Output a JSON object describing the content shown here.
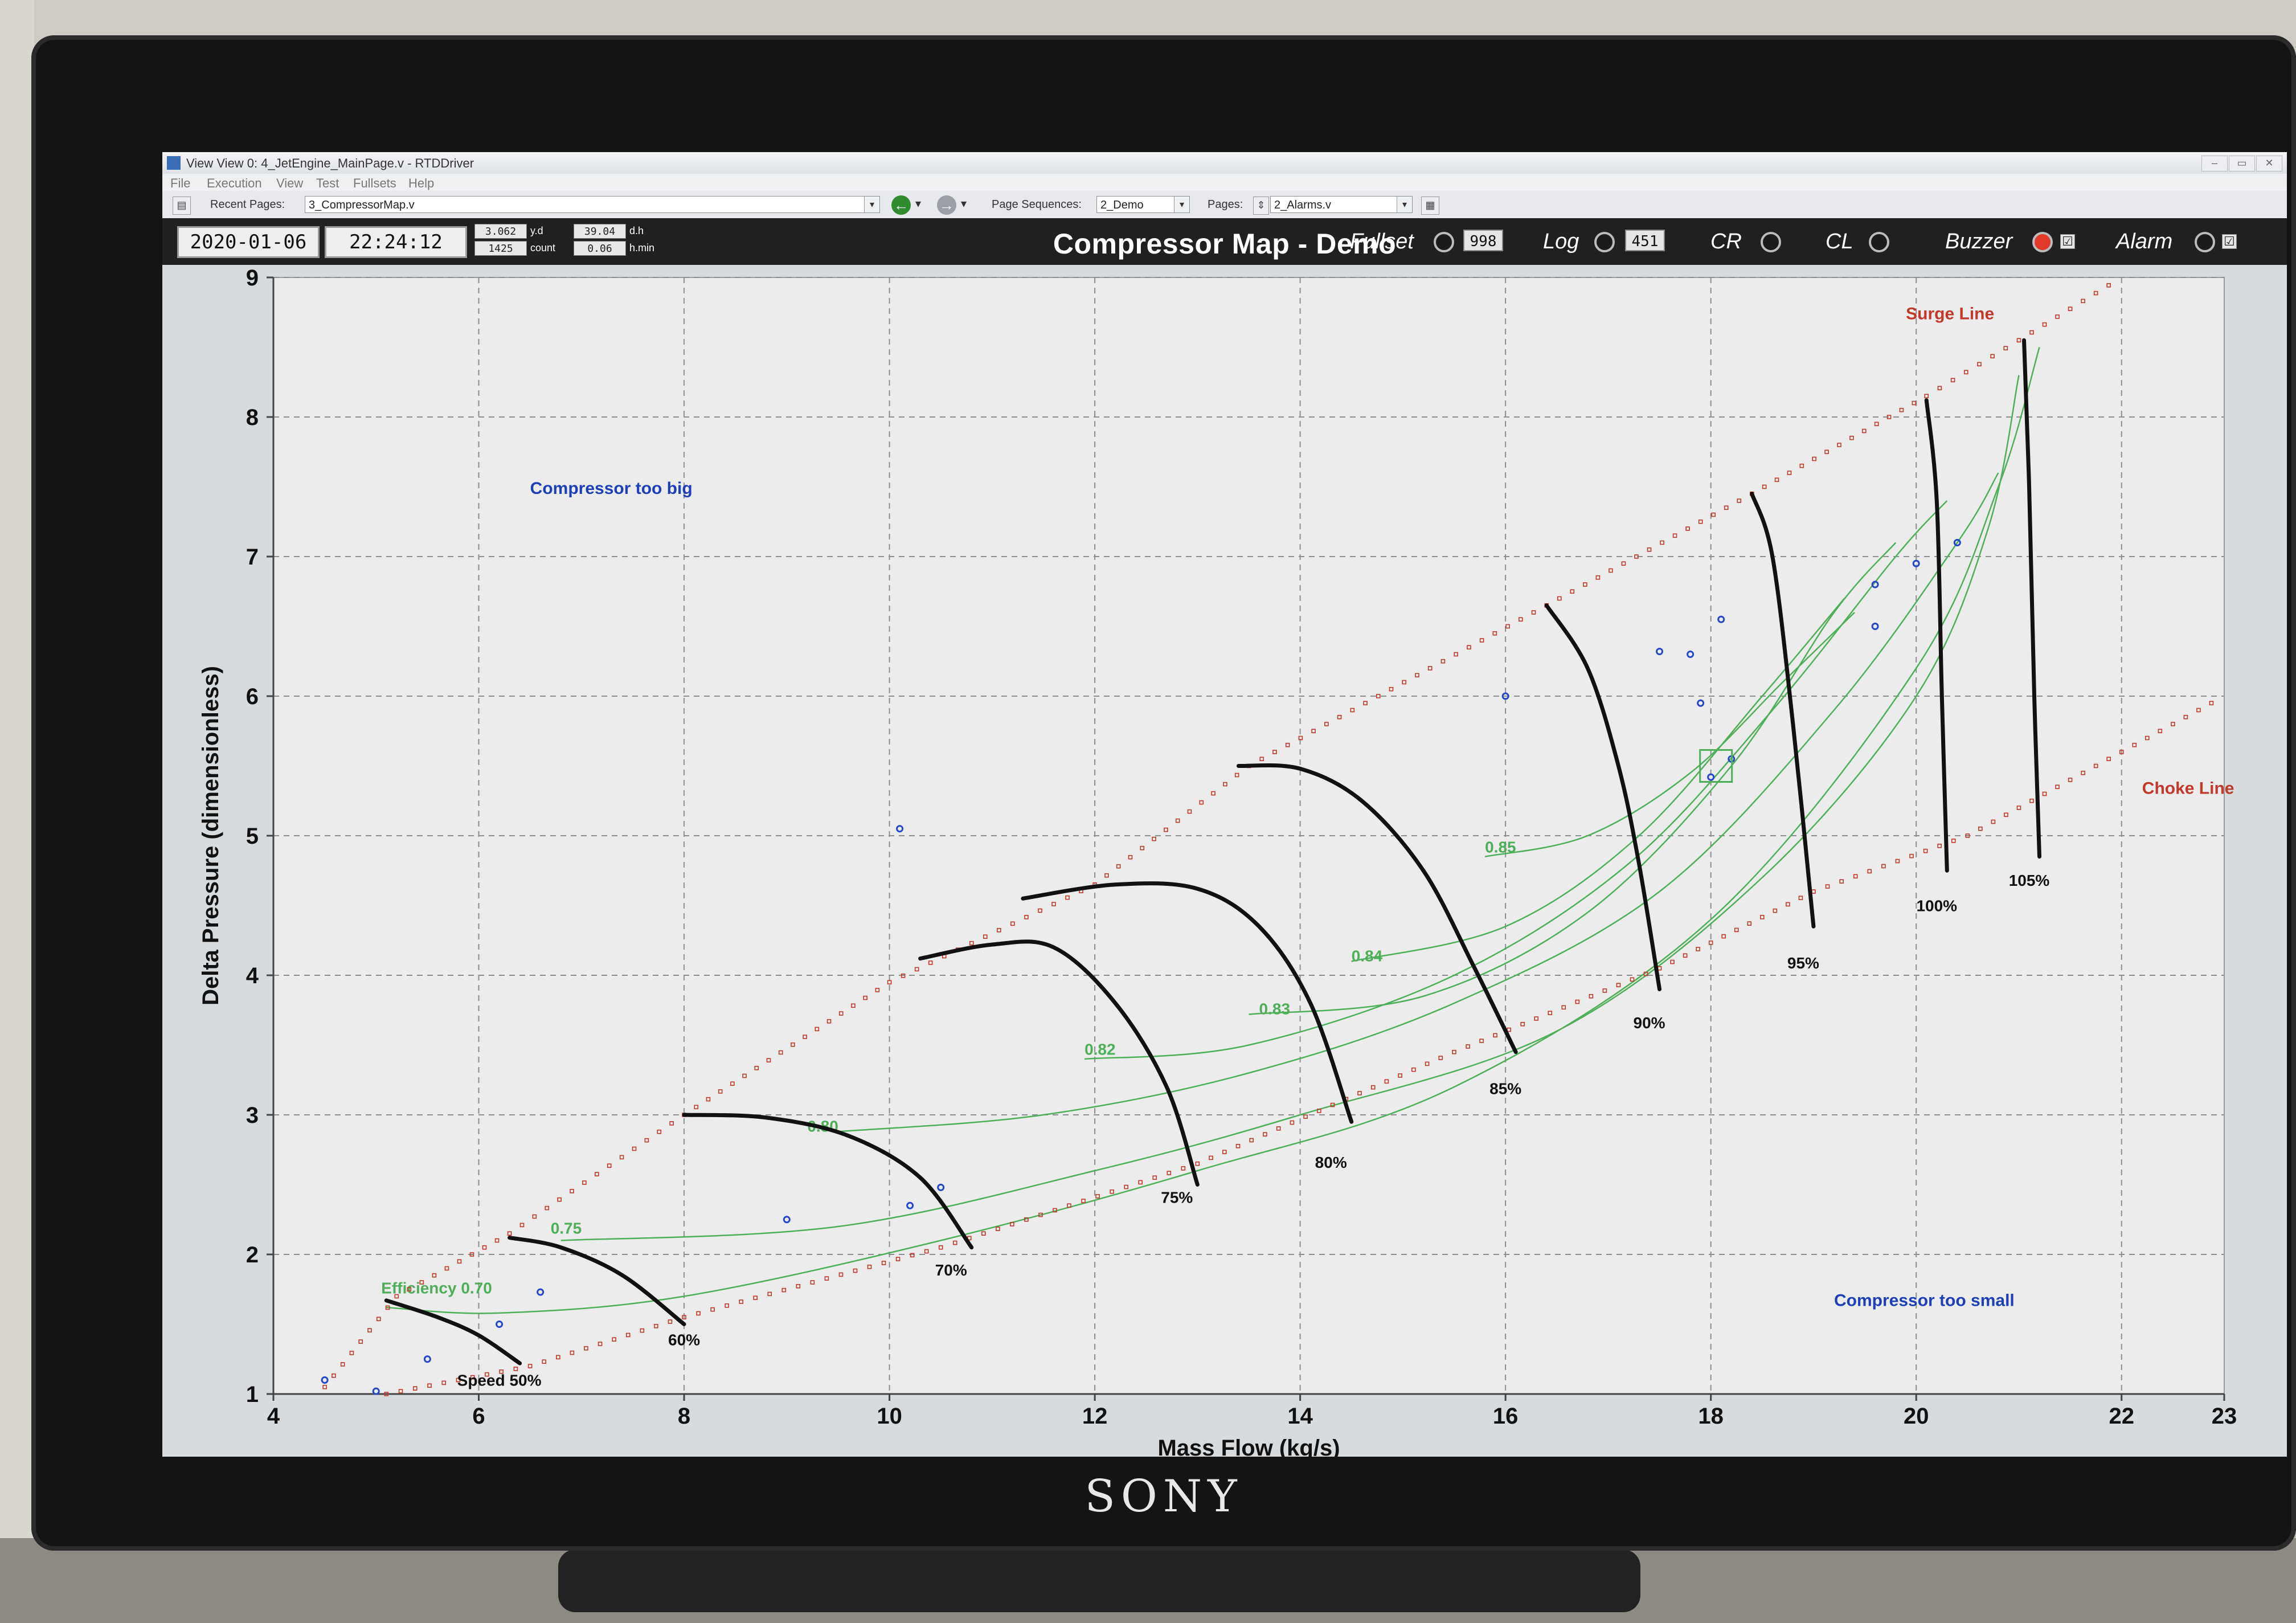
{
  "window": {
    "title": "View View 0: 4_JetEngine_MainPage.v - RTDDriver",
    "menu": [
      "File",
      "Execution",
      "View",
      "Test",
      "Fullsets",
      "Help"
    ]
  },
  "toolbar": {
    "recent_pages_label": "Recent Pages:",
    "recent_pages_value": "3_CompressorMap.v",
    "page_sequences_label": "Page Sequences:",
    "page_sequences_value": "2_Demo",
    "pages_label": "Pages:",
    "pages_value": "2_Alarms.v"
  },
  "status": {
    "date": "2020-01-06",
    "time": "22:24:12",
    "yd_value": "3.062",
    "yd_label": "y.d",
    "count_value": "1425",
    "count_label": "count",
    "dh_value": "39.04",
    "dh_label": "d.h",
    "hmin_value": "0.06",
    "hmin_label": "h.min",
    "page_title": "Compressor Map - Demo",
    "indicators": [
      {
        "label": "Fullset",
        "count": "998",
        "lamp": "#1b1b1b"
      },
      {
        "label": "Log",
        "count": "451",
        "lamp": "#1b1b1b"
      },
      {
        "label": "CR",
        "lamp": "#1b1b1b"
      },
      {
        "label": "CL",
        "lamp": "#1b1b1b"
      },
      {
        "label": "Buzzer",
        "lamp": "#e23a2a",
        "check": "☑"
      },
      {
        "label": "Alarm",
        "lamp": "#1b1b1b",
        "check": "☑"
      }
    ]
  },
  "colors": {
    "speed_line": "#111111",
    "efficiency": "#4fae5a",
    "surge_choke": "#c0392b",
    "operating_points": "#2747c9",
    "region_label": "#1f3fb5",
    "grid": "#8c8f92",
    "plot_bg": "#ececec"
  },
  "chart_data": {
    "type": "line",
    "title": "",
    "xlabel": "Mass Flow (kg/s)",
    "ylabel": "Delta Pressure (dimensionless)",
    "xlim": [
      4,
      23
    ],
    "ylim": [
      1,
      9
    ],
    "x_ticks": [
      "4",
      "6",
      "8",
      "10",
      "12",
      "14",
      "16",
      "18",
      "20",
      "22",
      "23"
    ],
    "y_ticks": [
      "1",
      "2",
      "3",
      "4",
      "5",
      "6",
      "7",
      "8",
      "9"
    ],
    "grid": true,
    "speed_lines": [
      {
        "label": "Speed 50%",
        "points": [
          [
            5.1,
            1.67
          ],
          [
            5.6,
            1.55
          ],
          [
            6.0,
            1.42
          ],
          [
            6.4,
            1.22
          ]
        ],
        "label_at": [
          6.2,
          1.06
        ]
      },
      {
        "label": "60%",
        "points": [
          [
            6.3,
            2.12
          ],
          [
            6.8,
            2.05
          ],
          [
            7.4,
            1.85
          ],
          [
            8.0,
            1.5
          ]
        ],
        "label_at": [
          8.0,
          1.35
        ]
      },
      {
        "label": "70%",
        "points": [
          [
            8.0,
            3.0
          ],
          [
            8.8,
            2.98
          ],
          [
            9.6,
            2.85
          ],
          [
            10.3,
            2.55
          ],
          [
            10.8,
            2.05
          ]
        ],
        "label_at": [
          10.6,
          1.85
        ]
      },
      {
        "label": "75%",
        "points": [
          [
            10.3,
            4.12
          ],
          [
            11.0,
            4.22
          ],
          [
            11.6,
            4.2
          ],
          [
            12.2,
            3.8
          ],
          [
            12.7,
            3.2
          ],
          [
            13.0,
            2.5
          ]
        ],
        "label_at": [
          12.8,
          2.37
        ]
      },
      {
        "label": "80%",
        "points": [
          [
            11.3,
            4.55
          ],
          [
            12.2,
            4.65
          ],
          [
            13.0,
            4.62
          ],
          [
            13.6,
            4.35
          ],
          [
            14.1,
            3.8
          ],
          [
            14.5,
            2.95
          ]
        ],
        "label_at": [
          14.3,
          2.62
        ]
      },
      {
        "label": "85%",
        "points": [
          [
            13.4,
            5.5
          ],
          [
            14.0,
            5.48
          ],
          [
            14.6,
            5.25
          ],
          [
            15.2,
            4.75
          ],
          [
            15.7,
            4.05
          ],
          [
            16.1,
            3.45
          ]
        ],
        "label_at": [
          16.0,
          3.15
        ]
      },
      {
        "label": "90%",
        "points": [
          [
            16.4,
            6.65
          ],
          [
            16.8,
            6.2
          ],
          [
            17.1,
            5.5
          ],
          [
            17.3,
            4.8
          ],
          [
            17.5,
            3.9
          ]
        ],
        "label_at": [
          17.4,
          3.62
        ]
      },
      {
        "label": "95%",
        "points": [
          [
            18.4,
            7.45
          ],
          [
            18.6,
            7.0
          ],
          [
            18.8,
            5.8
          ],
          [
            19.0,
            4.35
          ]
        ],
        "label_at": [
          18.9,
          4.05
        ]
      },
      {
        "label": "100%",
        "points": [
          [
            20.1,
            8.12
          ],
          [
            20.2,
            7.4
          ],
          [
            20.25,
            6.0
          ],
          [
            20.3,
            4.75
          ]
        ],
        "label_at": [
          20.2,
          4.46
        ]
      },
      {
        "label": "105%",
        "points": [
          [
            21.05,
            8.55
          ],
          [
            21.1,
            7.5
          ],
          [
            21.15,
            6.0
          ],
          [
            21.2,
            4.85
          ]
        ],
        "label_at": [
          21.1,
          4.64
        ]
      }
    ],
    "surge_line": {
      "label": "Surge Line",
      "label_at": [
        19.9,
        8.7
      ],
      "points": [
        [
          4.5,
          1.05
        ],
        [
          5.2,
          1.7
        ],
        [
          6.3,
          2.15
        ],
        [
          8.0,
          3.0
        ],
        [
          10.0,
          3.95
        ],
        [
          12.0,
          4.65
        ],
        [
          13.5,
          5.5
        ],
        [
          16.4,
          6.65
        ],
        [
          18.4,
          7.45
        ],
        [
          20.1,
          8.15
        ],
        [
          21.0,
          8.55
        ],
        [
          22.0,
          9.0
        ]
      ]
    },
    "choke_line": {
      "label": "Choke Line",
      "label_at": [
        22.2,
        5.3
      ],
      "points": [
        [
          5.1,
          1.0
        ],
        [
          6.5,
          1.2
        ],
        [
          8.0,
          1.55
        ],
        [
          10.5,
          2.05
        ],
        [
          13.0,
          2.65
        ],
        [
          15.5,
          3.45
        ],
        [
          17.5,
          4.05
        ],
        [
          19.0,
          4.6
        ],
        [
          20.5,
          5.0
        ],
        [
          21.5,
          5.4
        ],
        [
          23.0,
          6.0
        ]
      ]
    },
    "efficiency_contours": [
      {
        "label": "Efficiency 0.70",
        "label_at": [
          5.05,
          1.72
        ],
        "points": [
          [
            5.1,
            1.62
          ],
          [
            6.2,
            1.58
          ],
          [
            8.0,
            1.7
          ],
          [
            10.5,
            2.1
          ],
          [
            13.0,
            2.6
          ],
          [
            15.5,
            3.2
          ],
          [
            18.0,
            4.4
          ],
          [
            20.0,
            6.2
          ],
          [
            20.8,
            7.5
          ],
          [
            21.2,
            8.5
          ]
        ]
      },
      {
        "label": "0.75",
        "label_at": [
          6.7,
          2.15
        ],
        "points": [
          [
            6.8,
            2.1
          ],
          [
            9.5,
            2.2
          ],
          [
            12.0,
            2.6
          ],
          [
            14.0,
            3.0
          ],
          [
            16.5,
            3.6
          ],
          [
            18.5,
            4.7
          ],
          [
            20.0,
            6.0
          ],
          [
            20.7,
            7.2
          ],
          [
            21.0,
            8.3
          ]
        ]
      },
      {
        "label": "0.80",
        "label_at": [
          9.2,
          2.88
        ],
        "points": [
          [
            9.5,
            2.88
          ],
          [
            11.5,
            3.0
          ],
          [
            13.5,
            3.3
          ],
          [
            15.5,
            3.8
          ],
          [
            17.5,
            4.6
          ],
          [
            19.2,
            5.9
          ],
          [
            20.4,
            7.1
          ],
          [
            20.8,
            7.6
          ]
        ]
      },
      {
        "label": "0.82",
        "label_at": [
          11.9,
          3.43
        ],
        "points": [
          [
            11.9,
            3.4
          ],
          [
            13.5,
            3.5
          ],
          [
            15.5,
            4.0
          ],
          [
            17.2,
            4.8
          ],
          [
            18.6,
            5.9
          ],
          [
            19.8,
            7.0
          ],
          [
            20.3,
            7.4
          ]
        ]
      },
      {
        "label": "0.83",
        "label_at": [
          13.6,
          3.72
        ],
        "points": [
          [
            13.5,
            3.72
          ],
          [
            15.2,
            3.85
          ],
          [
            16.8,
            4.45
          ],
          [
            18.2,
            5.5
          ],
          [
            19.2,
            6.6
          ],
          [
            19.8,
            7.1
          ]
        ]
      },
      {
        "label": "0.84",
        "label_at": [
          14.5,
          4.1
        ],
        "points": [
          [
            14.5,
            4.1
          ],
          [
            16.0,
            4.35
          ],
          [
            17.3,
            5.0
          ],
          [
            18.5,
            6.0
          ],
          [
            19.3,
            6.7
          ]
        ]
      },
      {
        "label": "0.85",
        "label_at": [
          15.8,
          4.88
        ],
        "points": [
          [
            15.8,
            4.85
          ],
          [
            16.8,
            5.0
          ],
          [
            17.8,
            5.45
          ],
          [
            18.7,
            6.1
          ],
          [
            19.4,
            6.6
          ]
        ]
      }
    ],
    "operating_points": [
      [
        4.5,
        1.1
      ],
      [
        5.0,
        1.02
      ],
      [
        5.5,
        1.25
      ],
      [
        6.2,
        1.5
      ],
      [
        6.6,
        1.73
      ],
      [
        9.0,
        2.25
      ],
      [
        10.2,
        2.35
      ],
      [
        10.5,
        2.48
      ],
      [
        10.1,
        5.05
      ],
      [
        16.0,
        6.0
      ],
      [
        17.5,
        6.32
      ],
      [
        17.8,
        6.3
      ],
      [
        17.9,
        5.95
      ],
      [
        18.0,
        5.42
      ],
      [
        18.2,
        5.55
      ],
      [
        18.1,
        6.55
      ],
      [
        19.6,
        6.8
      ],
      [
        20.0,
        6.95
      ],
      [
        20.4,
        7.1
      ],
      [
        19.6,
        6.5
      ]
    ],
    "selected_point": [
      18.05,
      5.5
    ],
    "annotations": [
      {
        "text": "Compressor too big",
        "at": [
          6.5,
          7.45
        ]
      },
      {
        "text": "Compressor too small",
        "at": [
          19.2,
          1.63
        ]
      }
    ]
  }
}
